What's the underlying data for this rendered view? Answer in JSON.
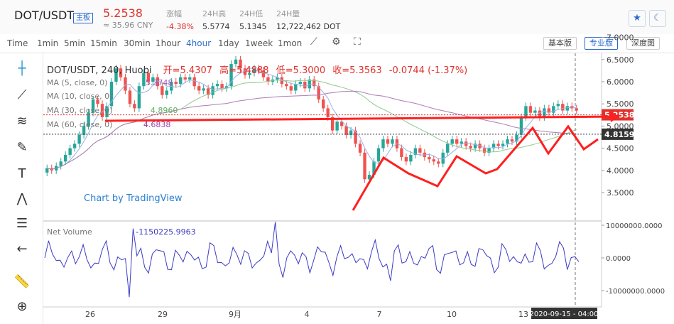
{
  "header": {
    "symbol": "DOT/USDT",
    "badge": "主板",
    "price": "5.2538",
    "cny": "≈ 35.96 CNY",
    "stats": [
      {
        "label": "涨幅",
        "value": "-4.38%"
      },
      {
        "label": "24H高",
        "value": "5.5774"
      },
      {
        "label": "24H低",
        "value": "5.1345"
      },
      {
        "label": "24H量",
        "value": "12,722,462 DOT"
      }
    ]
  },
  "toolbar": {
    "intervals": [
      "Time",
      "1min",
      "5min",
      "15min",
      "30min",
      "1hour",
      "4hour",
      "1day",
      "1week",
      "1mon"
    ],
    "active": "4hour",
    "views": [
      "基本版",
      "专业版",
      "深度图"
    ],
    "active_view": "专业版"
  },
  "chart": {
    "ohlc": {
      "title": "DOT/USDT, 240, Huobi",
      "open": "5.4307",
      "high": "5.4888",
      "low": "5.3000",
      "close": "5.3563",
      "change": "-0.0744 (-1.37%)"
    },
    "ma": [
      {
        "label": "MA (5, close, 0)",
        "value": "5.3748",
        "color": "#9b59b6"
      },
      {
        "label": "MA (10, close, 0)",
        "value": "",
        "color": "#5b7fd6"
      },
      {
        "label": "MA (30, close, 0)",
        "value": "4.8960",
        "color": "#5fae5f"
      },
      {
        "label": "MA (60, close, 0)",
        "value": "4.6838",
        "color": "#9b3fa0"
      }
    ],
    "watermark": "Chart by TradingView",
    "price_axis": [
      "7.0000",
      "6.5000",
      "6.0000",
      "5.5000",
      "5.0000",
      "4.5000",
      "4.0000",
      "3.5000"
    ],
    "price_tags": [
      {
        "value": "5.2538",
        "color": "#e0312d"
      },
      {
        "value": "4.8159",
        "color": "#333"
      }
    ],
    "volume": {
      "label": "Net Volume",
      "value": "-1150225.9963",
      "axis": [
        "10000000.0000",
        "0.0000",
        "-10000000.0000"
      ]
    },
    "time_axis": [
      "26",
      "29",
      "9月",
      "4",
      "7",
      "10",
      "13"
    ],
    "crosshair_time": "2020-09-15 - 04:00",
    "colors": {
      "up": "#26a69a",
      "down": "#ef5350",
      "arrow": "#ff1f1f"
    }
  }
}
